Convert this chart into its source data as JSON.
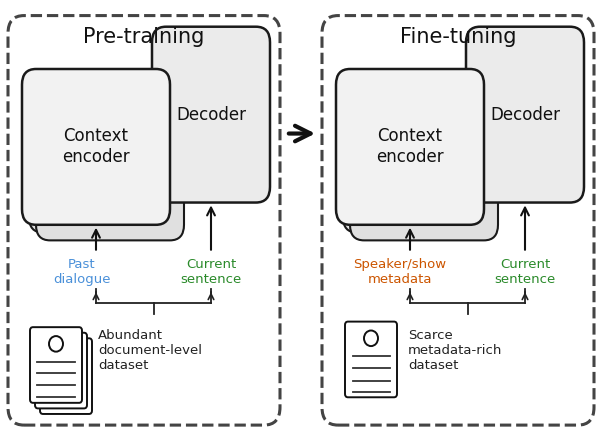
{
  "fig_width": 6.04,
  "fig_height": 4.34,
  "dpi": 100,
  "background_color": "#ffffff",
  "pre_training_label": "Pre-training",
  "fine_tuning_label": "Fine-tuning",
  "context_encoder_label": "Context\nencoder",
  "decoder_label": "Decoder",
  "past_dialogue_label": "Past\ndialogue",
  "current_sentence_label_pre": "Current\nsentence",
  "speaker_show_label": "Speaker/show\nmetadata",
  "current_sentence_label_fine": "Current\nsentence",
  "abundant_dataset_label": "Abundant\ndocument-level\ndataset",
  "scarce_dataset_label": "Scarce\nmetadata-rich\ndataset",
  "past_dialogue_color": "#4a90d9",
  "current_sentence_color": "#2a8a2a",
  "speaker_show_color": "#cc5500",
  "box_fill": "#f2f2f2",
  "box_fill_decoder": "#ebebeb",
  "box_edge": "#1a1a1a",
  "dashed_box_edge": "#444444",
  "arrow_color": "#111111",
  "big_arrow_color": "#111111",
  "brace_color": "#222222",
  "doc_edge": "#111111",
  "doc_fill": "#ffffff",
  "line_color": "#333333"
}
